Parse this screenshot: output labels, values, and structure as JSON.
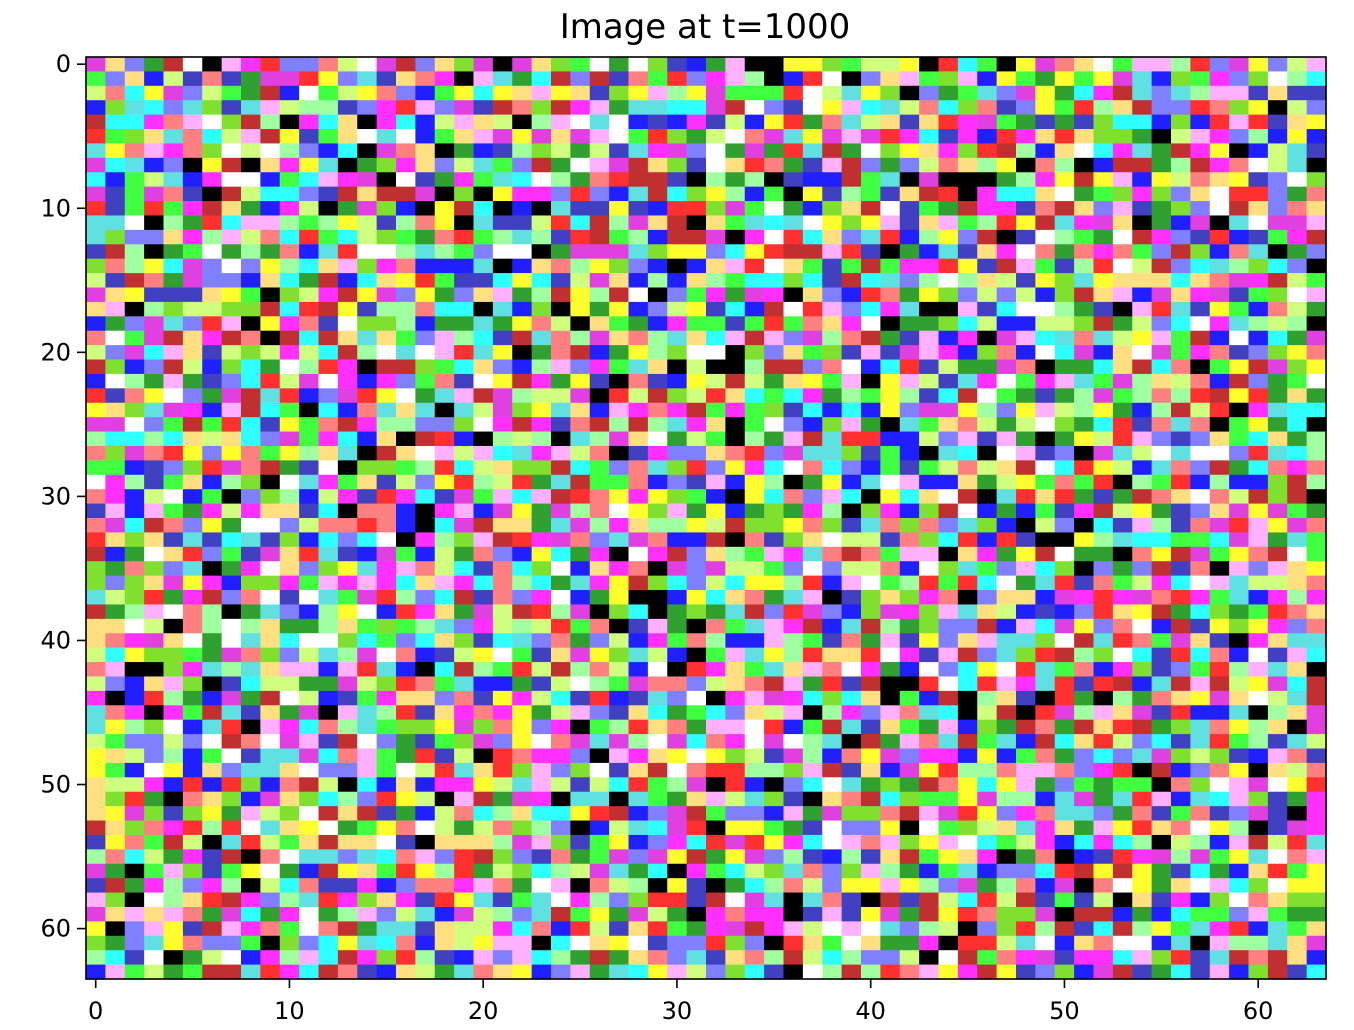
{
  "chart_data": {
    "type": "heatmap",
    "title": "Image at t=1000",
    "xlabel": "",
    "ylabel": "",
    "image_size": [
      64,
      64
    ],
    "xlim": [
      -0.5,
      63.5
    ],
    "ylim": [
      63.5,
      -0.5
    ],
    "x_ticks": [
      0,
      10,
      20,
      30,
      40,
      50,
      60
    ],
    "y_ticks": [
      0,
      10,
      20,
      30,
      40,
      50,
      60
    ],
    "x_tick_labels": [
      "0",
      "10",
      "20",
      "30",
      "40",
      "50",
      "60"
    ],
    "y_tick_labels": [
      "0",
      "10",
      "20",
      "30",
      "40",
      "50",
      "60"
    ],
    "y_axis_inverted": true,
    "grid": false,
    "legend": "none",
    "palette": [
      "#ff3030",
      "#40ff40",
      "#2020ff",
      "#ffff30",
      "#ff30ff",
      "#30ffff",
      "#ffffff",
      "#000000",
      "#80e030",
      "#ff8080",
      "#8080ff",
      "#a0ffa0",
      "#e040e0",
      "#30a030",
      "#d0ff80",
      "#ffb0ff",
      "#60e0e0",
      "#c03030",
      "#4040c0",
      "#ffe080"
    ]
  }
}
